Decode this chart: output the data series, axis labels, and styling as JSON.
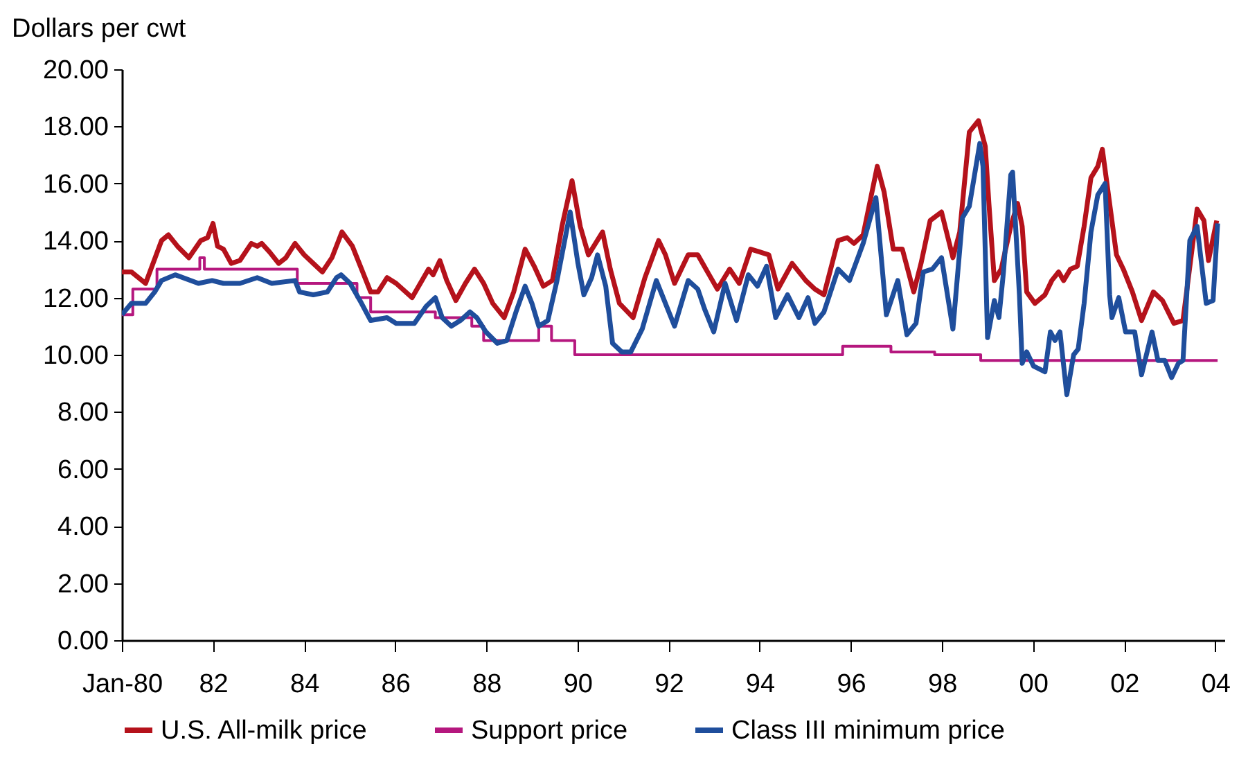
{
  "chart_data": {
    "type": "line",
    "ylabel": "Dollars per cwt",
    "xlim": [
      1980,
      2004.2
    ],
    "ylim": [
      0,
      20
    ],
    "xticks": [
      {
        "value": 1980,
        "label": "Jan-80"
      },
      {
        "value": 1982,
        "label": "82"
      },
      {
        "value": 1984,
        "label": "84"
      },
      {
        "value": 1986,
        "label": "86"
      },
      {
        "value": 1988,
        "label": "88"
      },
      {
        "value": 1990,
        "label": "90"
      },
      {
        "value": 1992,
        "label": "92"
      },
      {
        "value": 1994,
        "label": "94"
      },
      {
        "value": 1996,
        "label": "96"
      },
      {
        "value": 1998,
        "label": "98"
      },
      {
        "value": 2000,
        "label": "00"
      },
      {
        "value": 2002,
        "label": "02"
      },
      {
        "value": 2004,
        "label": "04"
      }
    ],
    "yticks": [
      {
        "value": 0,
        "label": "0.00"
      },
      {
        "value": 2,
        "label": "2.00"
      },
      {
        "value": 4,
        "label": "4.00"
      },
      {
        "value": 6,
        "label": "6.00"
      },
      {
        "value": 8,
        "label": "8.00"
      },
      {
        "value": 10,
        "label": "10.00"
      },
      {
        "value": 12,
        "label": "12.00"
      },
      {
        "value": 14,
        "label": "14.00"
      },
      {
        "value": 16,
        "label": "16.00"
      },
      {
        "value": 18,
        "label": "18.00"
      },
      {
        "value": 20,
        "label": "20.00"
      }
    ],
    "grid": false,
    "legend": "bottom",
    "marker": "none",
    "line_style": "solid",
    "series": [
      {
        "name": "U.S. All-milk price",
        "color": "#b5121b",
        "x": [
          1980.0,
          1980.21,
          1980.52,
          1980.87,
          1981.02,
          1981.22,
          1981.47,
          1981.73,
          1981.88,
          1982.0,
          1982.1,
          1982.23,
          1982.4,
          1982.59,
          1982.84,
          1982.97,
          1983.07,
          1983.24,
          1983.44,
          1983.6,
          1983.8,
          1984.0,
          1984.2,
          1984.4,
          1984.61,
          1984.83,
          1985.06,
          1985.26,
          1985.46,
          1985.62,
          1985.82,
          1986.02,
          1986.37,
          1986.73,
          1986.83,
          1986.98,
          1987.13,
          1987.33,
          1987.54,
          1987.74,
          1987.94,
          1988.14,
          1988.39,
          1988.6,
          1988.85,
          1989.05,
          1989.25,
          1989.45,
          1989.66,
          1989.88,
          1990.06,
          1990.24,
          1990.55,
          1990.72,
          1990.92,
          1991.22,
          1991.48,
          1991.78,
          1991.93,
          1992.13,
          1992.43,
          1992.64,
          1992.89,
          1993.07,
          1993.34,
          1993.55,
          1993.8,
          1994.0,
          1994.2,
          1994.4,
          1994.71,
          1995.01,
          1995.21,
          1995.41,
          1995.72,
          1995.92,
          1996.07,
          1996.27,
          1996.58,
          1996.73,
          1996.93,
          1997.13,
          1997.38,
          1997.54,
          1997.74,
          1997.99,
          1998.24,
          1998.39,
          1998.6,
          1998.8,
          1998.95,
          1999.03,
          1999.15,
          1999.3,
          1999.51,
          1999.66,
          1999.76,
          1999.86,
          2000.04,
          2000.26,
          2000.41,
          2000.56,
          2000.67,
          2000.82,
          2000.97,
          2001.12,
          2001.27,
          2001.42,
          2001.52,
          2001.68,
          2001.83,
          2001.98,
          2002.18,
          2002.38,
          2002.64,
          2002.84,
          2003.09,
          2003.29,
          2003.6,
          2003.75,
          2003.85,
          2004.03
        ],
        "values": [
          12.9,
          12.9,
          12.5,
          14.0,
          14.2,
          13.8,
          13.4,
          14.0,
          14.1,
          14.6,
          13.8,
          13.7,
          13.2,
          13.3,
          13.9,
          13.8,
          13.9,
          13.6,
          13.2,
          13.4,
          13.9,
          13.5,
          13.2,
          12.9,
          13.4,
          14.3,
          13.8,
          13.0,
          12.2,
          12.2,
          12.7,
          12.5,
          12.0,
          13.0,
          12.8,
          13.3,
          12.6,
          11.9,
          12.5,
          13.0,
          12.5,
          11.8,
          11.3,
          12.2,
          13.7,
          13.1,
          12.4,
          12.6,
          14.5,
          16.1,
          14.5,
          13.5,
          14.3,
          13.0,
          11.8,
          11.3,
          12.7,
          14.0,
          13.5,
          12.5,
          13.5,
          13.5,
          12.8,
          12.3,
          13.0,
          12.5,
          13.7,
          13.6,
          13.5,
          12.3,
          13.2,
          12.6,
          12.3,
          12.1,
          14.0,
          14.1,
          13.9,
          14.2,
          16.6,
          15.7,
          13.7,
          13.7,
          12.2,
          13.2,
          14.7,
          15.0,
          13.4,
          14.3,
          17.8,
          18.2,
          17.3,
          15.3,
          12.6,
          13.0,
          14.5,
          15.3,
          14.5,
          12.2,
          11.8,
          12.1,
          12.6,
          12.9,
          12.6,
          13.0,
          13.1,
          14.5,
          16.2,
          16.6,
          17.2,
          15.3,
          13.5,
          13.0,
          12.2,
          11.2,
          12.2,
          11.9,
          11.1,
          11.2,
          15.1,
          14.7,
          13.3,
          14.7
        ]
      },
      {
        "name": "Support price",
        "color": "#b5177e",
        "type": "step",
        "x": [
          1980.0,
          1980.24,
          1980.77,
          1981.71,
          1981.81,
          1983.85,
          1985.16,
          1985.46,
          1986.88,
          1987.68,
          1987.94,
          1989.15,
          1989.43,
          1989.94,
          1995.82,
          1996.88,
          1997.84,
          1998.85,
          2004.05
        ],
        "values": [
          11.4,
          12.3,
          13.0,
          13.4,
          13.0,
          12.5,
          12.0,
          11.5,
          11.3,
          11.0,
          10.5,
          11.0,
          10.5,
          10.0,
          10.3,
          10.1,
          10.0,
          9.8,
          9.8
        ]
      },
      {
        "name": "Class III minimum price",
        "color": "#1f4e9c",
        "x": [
          1980.0,
          1980.21,
          1980.52,
          1980.72,
          1980.87,
          1981.17,
          1981.68,
          1981.98,
          1982.23,
          1982.59,
          1982.97,
          1983.29,
          1983.8,
          1983.9,
          1984.2,
          1984.51,
          1984.71,
          1984.81,
          1985.01,
          1985.26,
          1985.46,
          1985.82,
          1986.02,
          1986.42,
          1986.68,
          1986.88,
          1987.03,
          1987.23,
          1987.43,
          1987.64,
          1987.79,
          1987.99,
          1988.24,
          1988.45,
          1988.65,
          1988.85,
          1989.0,
          1989.15,
          1989.35,
          1989.55,
          1989.84,
          1990.01,
          1990.14,
          1990.31,
          1990.44,
          1990.62,
          1990.77,
          1990.97,
          1991.17,
          1991.42,
          1991.73,
          1991.93,
          1992.13,
          1992.43,
          1992.64,
          1992.79,
          1992.99,
          1993.24,
          1993.49,
          1993.75,
          1993.95,
          1994.15,
          1994.35,
          1994.61,
          1994.86,
          1995.06,
          1995.21,
          1995.41,
          1995.72,
          1995.97,
          1996.27,
          1996.55,
          1996.78,
          1997.03,
          1997.23,
          1997.43,
          1997.59,
          1997.79,
          1997.99,
          1998.24,
          1998.45,
          1998.6,
          1998.83,
          1998.9,
          1999.0,
          1999.15,
          1999.25,
          1999.35,
          1999.51,
          1999.55,
          1999.7,
          1999.76,
          1999.86,
          2000.01,
          2000.26,
          2000.38,
          2000.48,
          2000.59,
          2000.74,
          2000.89,
          2000.99,
          2001.12,
          2001.27,
          2001.42,
          2001.58,
          2001.68,
          2001.73,
          2001.88,
          2002.03,
          2002.23,
          2002.38,
          2002.61,
          2002.74,
          2002.89,
          2003.04,
          2003.19,
          2003.29,
          2003.44,
          2003.6,
          2003.8,
          2003.95,
          2004.05
        ],
        "values": [
          11.4,
          11.8,
          11.8,
          12.2,
          12.6,
          12.8,
          12.5,
          12.6,
          12.5,
          12.5,
          12.7,
          12.5,
          12.6,
          12.2,
          12.1,
          12.2,
          12.7,
          12.8,
          12.5,
          11.8,
          11.2,
          11.3,
          11.1,
          11.1,
          11.7,
          12.0,
          11.3,
          11.0,
          11.2,
          11.5,
          11.3,
          10.8,
          10.4,
          10.5,
          11.5,
          12.4,
          11.8,
          11.0,
          11.2,
          12.6,
          15.0,
          13.2,
          12.1,
          12.7,
          13.5,
          12.4,
          10.4,
          10.1,
          10.1,
          10.9,
          12.6,
          11.8,
          11.0,
          12.6,
          12.3,
          11.6,
          10.8,
          12.5,
          11.2,
          12.8,
          12.4,
          13.1,
          11.3,
          12.1,
          11.3,
          12.0,
          11.1,
          11.5,
          13.0,
          12.6,
          13.9,
          15.5,
          11.4,
          12.6,
          10.7,
          11.1,
          12.9,
          13.0,
          13.4,
          10.9,
          14.8,
          15.2,
          17.4,
          16.6,
          10.6,
          11.9,
          11.3,
          12.9,
          16.3,
          16.4,
          12.1,
          9.7,
          10.1,
          9.6,
          9.4,
          10.8,
          10.5,
          10.8,
          8.6,
          10.0,
          10.2,
          11.8,
          14.3,
          15.6,
          16.0,
          12.1,
          11.3,
          12.0,
          10.8,
          10.8,
          9.3,
          10.8,
          9.8,
          9.8,
          9.2,
          9.7,
          9.8,
          14.0,
          14.5,
          11.8,
          11.9,
          14.6
        ]
      }
    ]
  }
}
